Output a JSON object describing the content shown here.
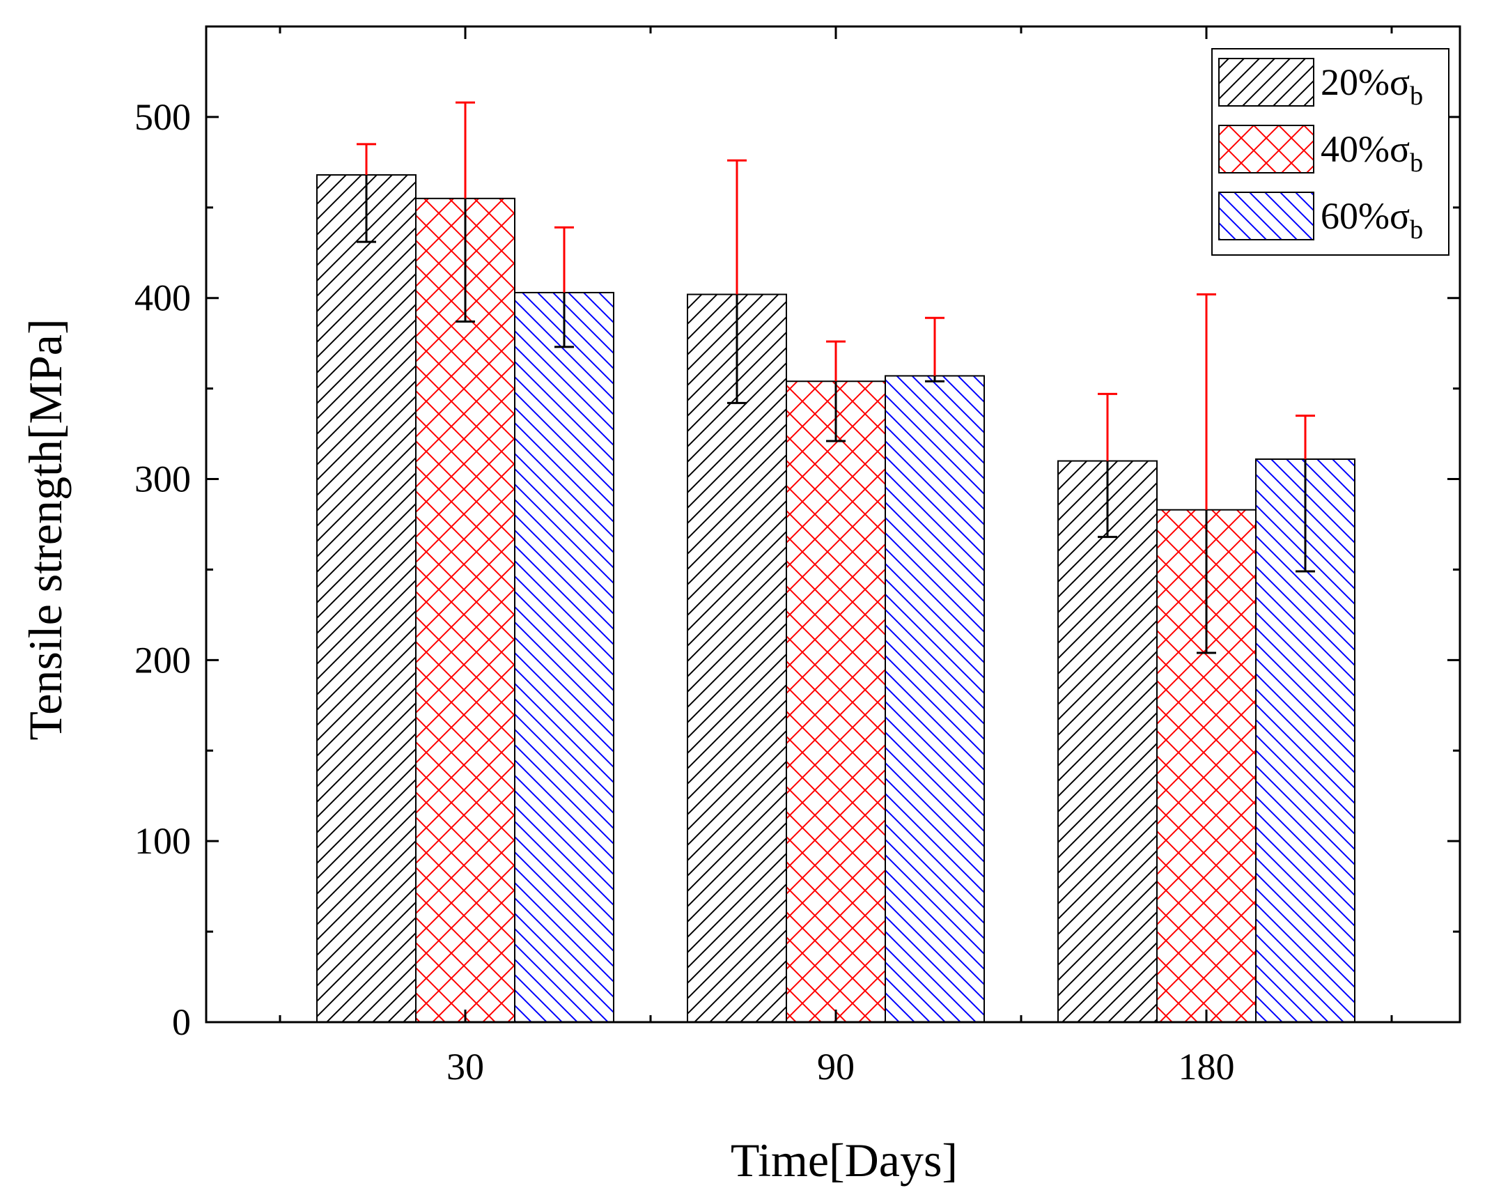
{
  "chart_data": {
    "type": "bar",
    "xlabel": "Time[Days]",
    "ylabel": "Tensile strength[MPa]",
    "ylim": [
      0,
      550
    ],
    "yticks": [
      0,
      100,
      200,
      300,
      400,
      500
    ],
    "categories": [
      "30",
      "90",
      "180"
    ],
    "legend_position": "top-right",
    "series": [
      {
        "name": "20%σb",
        "label_main": "20%σ",
        "label_sub": "b",
        "color": "#000000",
        "pattern": "diagonal-up",
        "values": [
          468,
          402,
          310
        ],
        "error_upper": [
          485,
          476,
          347
        ],
        "error_lower": [
          431,
          342,
          268
        ]
      },
      {
        "name": "40%σb",
        "label_main": "40%σ",
        "label_sub": "b",
        "color": "#ff0000",
        "pattern": "crosshatch",
        "values": [
          455,
          354,
          283
        ],
        "error_upper": [
          508,
          376,
          402
        ],
        "error_lower": [
          387,
          321,
          204
        ]
      },
      {
        "name": "60%σb",
        "label_main": "60%σ",
        "label_sub": "b",
        "color": "#0000ff",
        "pattern": "diagonal-down",
        "values": [
          403,
          357,
          311
        ],
        "error_upper": [
          439,
          389,
          335
        ],
        "error_lower": [
          373,
          354,
          249
        ]
      }
    ],
    "error_bar_color_above": "#ff0000",
    "error_bar_color_below": "#000000"
  }
}
